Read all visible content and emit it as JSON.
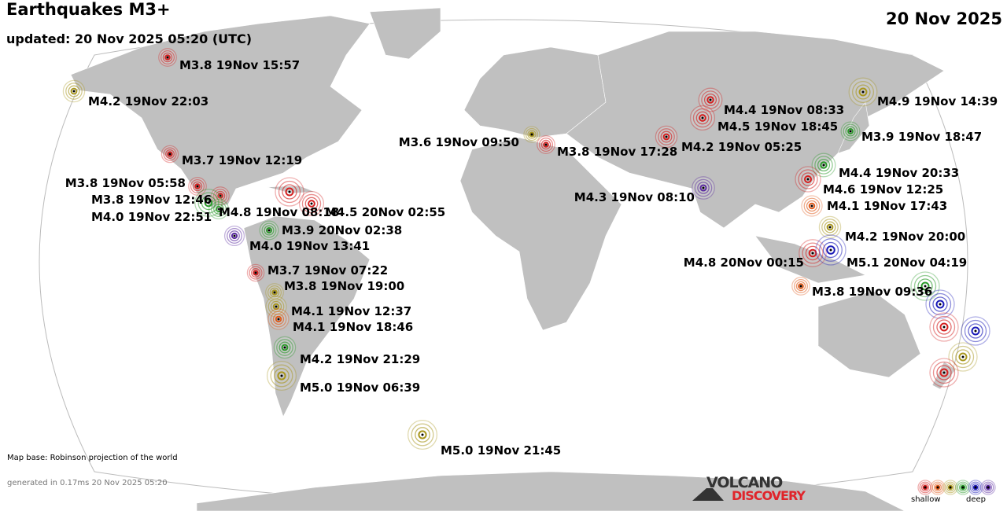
{
  "header": {
    "title": "Earthquakes M3+",
    "updated": "updated: 20 Nov 2025 05:20 (UTC)",
    "date": "20 Nov 2025"
  },
  "depth_colors": {
    "shallow": "#d42020",
    "shallow_mid": "#e05a1a",
    "mid": "#a8961e",
    "mid_deep": "#2a9a2a",
    "deep": "#1a1ab8",
    "deepest": "#5a2aa0"
  },
  "quakes": [
    {
      "label": "M3.8 19Nov 15:57",
      "depth": "shallow"
    },
    {
      "label": "M4.2 19Nov 22:03",
      "depth": "mid"
    },
    {
      "label": "M3.7 19Nov 12:19",
      "depth": "shallow"
    },
    {
      "label": "M3.8 19Nov 05:58",
      "depth": "shallow"
    },
    {
      "label": "M3.8 19Nov 12:46",
      "depth": "shallow"
    },
    {
      "label": "M4.0 19Nov 22:51",
      "depth": "mid_deep"
    },
    {
      "label": "M4.8 19Nov 08:18",
      "depth": "mid_deep"
    },
    {
      "label": "M4.5 20Nov 02:55",
      "depth": "shallow"
    },
    {
      "label": "M3.9 20Nov 02:38",
      "depth": "mid_deep"
    },
    {
      "label": "M4.0 19Nov 13:41",
      "depth": "deepest"
    },
    {
      "label": "M3.7 19Nov 07:22",
      "depth": "shallow"
    },
    {
      "label": "M3.8 19Nov 19:00",
      "depth": "mid"
    },
    {
      "label": "M4.1 19Nov 12:37",
      "depth": "mid"
    },
    {
      "label": "M4.1 19Nov 18:46",
      "depth": "shallow_mid"
    },
    {
      "label": "M4.2 19Nov 21:29",
      "depth": "mid_deep"
    },
    {
      "label": "M5.0 19Nov 06:39",
      "depth": "mid"
    },
    {
      "label": "M5.0 19Nov 21:45",
      "depth": "mid"
    },
    {
      "label": "M3.6 19Nov 09:50",
      "depth": "mid"
    },
    {
      "label": "M3.8 19Nov 17:28",
      "depth": "shallow"
    },
    {
      "label": "M4.2 19Nov 05:25",
      "depth": "shallow"
    },
    {
      "label": "M4.4 19Nov 08:33",
      "depth": "shallow"
    },
    {
      "label": "M4.5 19Nov 18:45",
      "depth": "shallow"
    },
    {
      "label": "M4.3 19Nov 08:10",
      "depth": "deepest"
    },
    {
      "label": "M4.9 19Nov 14:39",
      "depth": "mid"
    },
    {
      "label": "M3.9 19Nov 18:47",
      "depth": "mid_deep"
    },
    {
      "label": "M4.4 19Nov 20:33",
      "depth": "mid_deep"
    },
    {
      "label": "M4.6 19Nov 12:25",
      "depth": "shallow"
    },
    {
      "label": "M4.1 19Nov 17:43",
      "depth": "shallow_mid"
    },
    {
      "label": "M4.2 19Nov 20:00",
      "depth": "mid"
    },
    {
      "label": "M4.8 20Nov 00:15",
      "depth": "shallow"
    },
    {
      "label": "M5.1 20Nov 04:19",
      "depth": "deep"
    },
    {
      "label": "M3.8 19Nov 09:36",
      "depth": "shallow_mid"
    }
  ],
  "unlabeled_quakes": [
    {
      "depth": "shallow"
    },
    {
      "depth": "mid_deep"
    },
    {
      "depth": "deep"
    },
    {
      "depth": "shallow"
    },
    {
      "depth": "deep"
    },
    {
      "depth": "mid"
    },
    {
      "depth": "shallow"
    }
  ],
  "footer": {
    "map_base": "Map base: Robinson projection of the world",
    "generated": "generated in 0.17ms 20 Nov 2025 05:20"
  },
  "logo": {
    "line1": "VOLCANO",
    "line2": "DISCOVERY"
  },
  "legend": {
    "shallow": "shallow",
    "deep": "deep"
  }
}
